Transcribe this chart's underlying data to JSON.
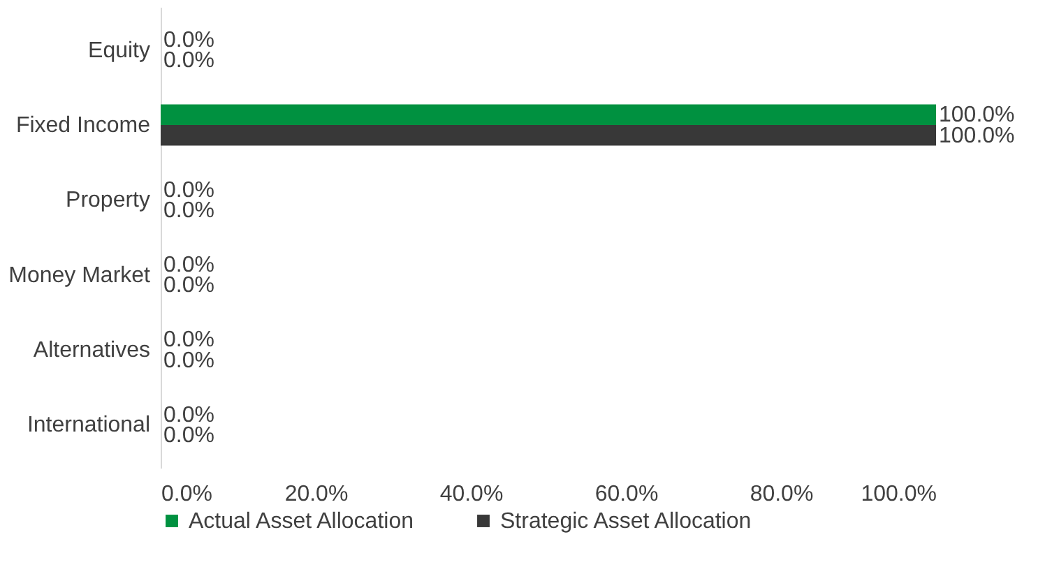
{
  "chart_data": {
    "type": "bar",
    "orientation": "horizontal",
    "categories": [
      "Equity",
      "Fixed Income",
      "Property",
      "Money Market",
      "Alternatives",
      "International"
    ],
    "series": [
      {
        "name": "Actual Asset Allocation",
        "color": "#009140",
        "values": [
          0,
          100,
          0,
          0,
          0,
          0
        ],
        "value_labels": [
          "0.0%",
          "100.0%",
          "0.0%",
          "0.0%",
          "0.0%",
          "0.0%"
        ]
      },
      {
        "name": "Strategic Asset Allocation",
        "color": "#383838",
        "values": [
          0,
          100,
          0,
          0,
          0,
          0
        ],
        "value_labels": [
          "0.0%",
          "100.0%",
          "0.0%",
          "0.0%",
          "0.0%",
          "0.0%"
        ]
      }
    ],
    "xlim": [
      0,
      100
    ],
    "xticks": [
      {
        "value": 0,
        "label": "0.0%"
      },
      {
        "value": 20,
        "label": "20.0%"
      },
      {
        "value": 40,
        "label": "40.0%"
      },
      {
        "value": 60,
        "label": "60.0%"
      },
      {
        "value": 80,
        "label": "80.0%"
      },
      {
        "value": 100,
        "label": "100.0%"
      }
    ],
    "legend": "bottom",
    "grid": false
  }
}
